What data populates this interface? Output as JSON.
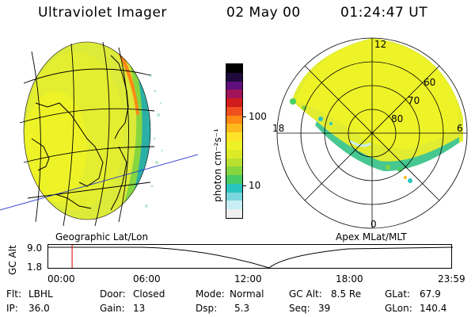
{
  "header": {
    "instrument": "Ultraviolet Imager",
    "date": "02 May 00",
    "time": "01:24:47 UT"
  },
  "colorbar": {
    "unit_label": "photon cm⁻²s⁻¹",
    "ticks": [
      {
        "label": "100",
        "value": 100
      },
      {
        "label": "10",
        "value": 10
      }
    ],
    "colors": [
      "#f0f0f0",
      "#c8eef6",
      "#7ad7dd",
      "#29c4c0",
      "#47cc66",
      "#86d63f",
      "#b8e030",
      "#dcea28",
      "#eef328",
      "#ffe328",
      "#ffb81e",
      "#ff8a14",
      "#f05020",
      "#d01c1c",
      "#a0145a",
      "#60107c",
      "#200a3c",
      "#000000"
    ]
  },
  "left_panel": {
    "label": "Geographic Lat/Lon"
  },
  "right_panel": {
    "label": "Apex MLat/MLT",
    "mlt_labels": [
      "12",
      "18",
      "6",
      "0"
    ],
    "mlat_labels": [
      "60",
      "70",
      "80"
    ]
  },
  "timeline": {
    "axis_title": "GC Alt",
    "y_ticks": [
      "9.0",
      "1.8"
    ],
    "x_ticks": [
      "00:00",
      "06:00",
      "12:00",
      "18:00",
      "23:59"
    ],
    "marker_time": "01:24:47",
    "marker_fraction": 0.059
  },
  "info": {
    "flt_label": "Flt:",
    "flt_value": "LBHL",
    "ip_label": "IP:",
    "ip_value": "36.0",
    "door_label": "Door:",
    "door_value": "Closed",
    "gain_label": "Gain:",
    "gain_value": "13",
    "mode_label": "Mode:",
    "mode_value": "Normal",
    "dsp_label": "Dsp:",
    "dsp_value": "5.3",
    "gcalt_label": "GC Alt:",
    "gcalt_value": "8.5 Re",
    "seq_label": "Seq:",
    "seq_value": "39",
    "glat_label": "GLat:",
    "glat_value": "67.9",
    "glon_label": "GLon:",
    "glon_value": "140.4"
  }
}
